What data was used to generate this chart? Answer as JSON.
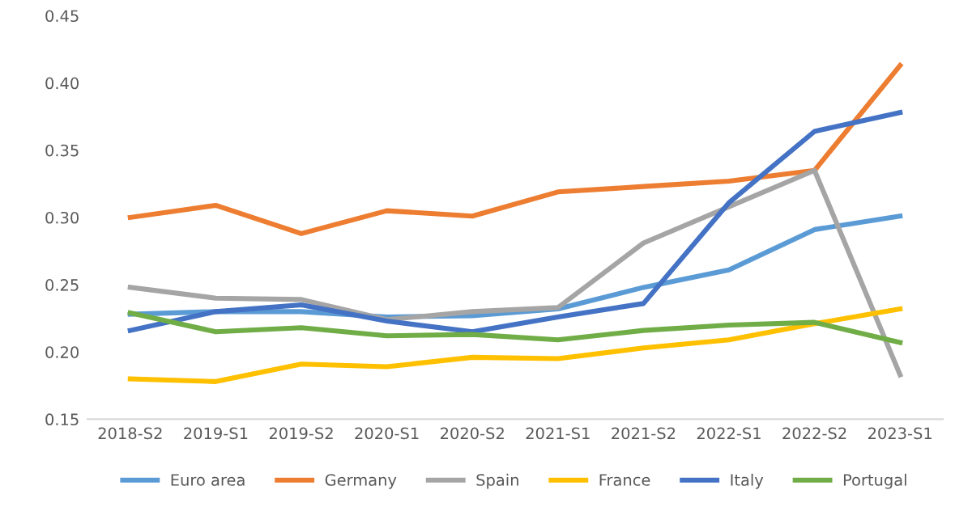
{
  "chart_data": {
    "type": "line",
    "categories": [
      "2018-S2",
      "2019-S1",
      "2019-S2",
      "2020-S1",
      "2020-S2",
      "2021-S1",
      "2021-S2",
      "2022-S1",
      "2022-S2",
      "2023-S1"
    ],
    "series": [
      {
        "name": "Euro area",
        "color": "#5b9bd5",
        "values": [
          0.228,
          0.23,
          0.23,
          0.226,
          0.227,
          0.232,
          0.248,
          0.261,
          0.291,
          0.301
        ]
      },
      {
        "name": "Germany",
        "color": "#ed7d31",
        "values": [
          0.3,
          0.309,
          0.288,
          0.305,
          0.301,
          0.319,
          0.323,
          0.327,
          0.335,
          0.413
        ]
      },
      {
        "name": "Spain",
        "color": "#a5a5a5",
        "values": [
          0.248,
          0.24,
          0.239,
          0.224,
          0.23,
          0.233,
          0.281,
          0.308,
          0.335,
          0.183
        ]
      },
      {
        "name": "France",
        "color": "#ffc000",
        "values": [
          0.18,
          0.178,
          0.191,
          0.189,
          0.196,
          0.195,
          0.203,
          0.209,
          0.221,
          0.232
        ]
      },
      {
        "name": "Italy",
        "color": "#4472c4",
        "values": [
          0.216,
          0.23,
          0.235,
          0.223,
          0.215,
          0.226,
          0.236,
          0.311,
          0.364,
          0.378
        ]
      },
      {
        "name": "Portugal",
        "color": "#70ad47",
        "values": [
          0.229,
          0.215,
          0.218,
          0.212,
          0.213,
          0.209,
          0.216,
          0.22,
          0.222,
          0.207
        ]
      }
    ],
    "ylim": [
      0.15,
      0.45
    ],
    "yticks": [
      {
        "value": 0.15,
        "label": "0.15"
      },
      {
        "value": 0.2,
        "label": "0.20"
      },
      {
        "value": 0.25,
        "label": "0.25"
      },
      {
        "value": 0.3,
        "label": "0.30"
      },
      {
        "value": 0.35,
        "label": "0.35"
      },
      {
        "value": 0.4,
        "label": "0.40"
      },
      {
        "value": 0.45,
        "label": "0.45"
      }
    ],
    "grid": false,
    "legend": "bottom",
    "marker": "none",
    "line_style": "solid"
  }
}
